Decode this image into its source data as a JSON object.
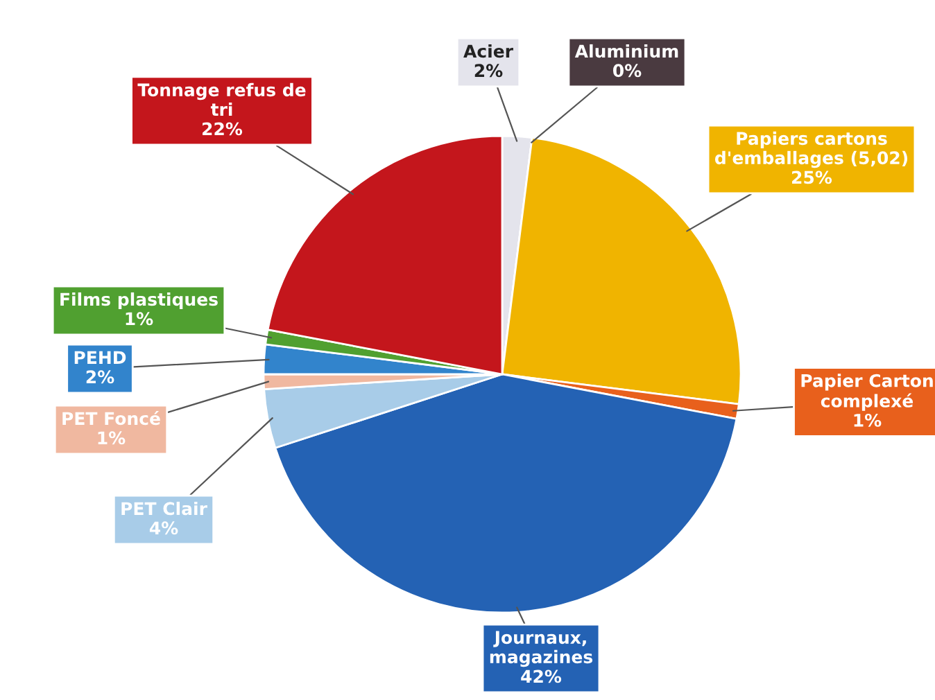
{
  "chart_data": {
    "type": "pie",
    "categories": [
      "Acier",
      "Aluminium",
      "Papiers cartons d'emballages (5,02)",
      "Papier Carton complexé",
      "Journaux, magazines",
      "PET Clair",
      "PET Foncé",
      "PEHD",
      "Films plastiques",
      "Tonnage refus de tri"
    ],
    "values": [
      2,
      0,
      25,
      1,
      42,
      4,
      1,
      2,
      1,
      22
    ],
    "colors": [
      "#e4e4ec",
      "#4a3a40",
      "#f0b400",
      "#e8601c",
      "#2462b4",
      "#a8cce8",
      "#f0b8a0",
      "#3284cc",
      "#50a030",
      "#c4161c"
    ],
    "value_labels": [
      "2%",
      "0%",
      "25%",
      "1%",
      "42%",
      "4%",
      "1%",
      "2%",
      "1%",
      "22%"
    ],
    "legend": false
  }
}
